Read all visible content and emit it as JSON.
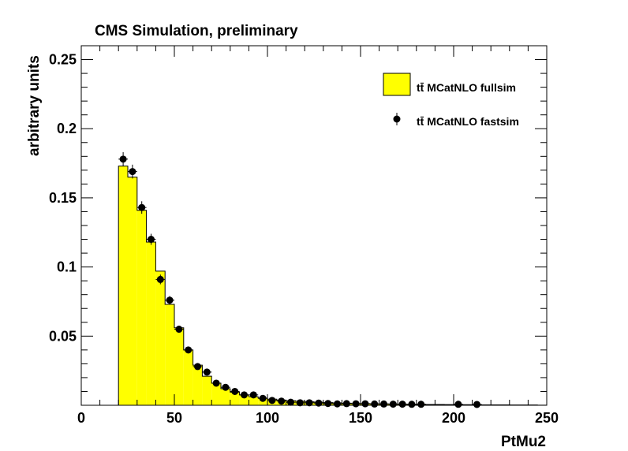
{
  "chart_data": {
    "type": "bar",
    "title": "CMS Simulation, preliminary",
    "xlabel": "PtMu2",
    "ylabel": "arbitrary units",
    "xlim": [
      0,
      250
    ],
    "ylim": [
      0,
      0.26
    ],
    "x_ticks": [
      0,
      50,
      100,
      150,
      200,
      250
    ],
    "y_ticks": [
      0.05,
      0.1,
      0.15,
      0.2,
      0.25
    ],
    "x_tick_labels": [
      "0",
      "50",
      "100",
      "150",
      "200",
      "250"
    ],
    "y_tick_labels": [
      "0.05",
      "0.1",
      "0.15",
      "0.2",
      "0.25"
    ],
    "grid": false,
    "legend_position": "top-right",
    "bin_edges": [
      20,
      25,
      30,
      35,
      40,
      45,
      50,
      55,
      60,
      65,
      70,
      75,
      80,
      85,
      90,
      95,
      100,
      105,
      110,
      115,
      120,
      125,
      130,
      135,
      140,
      145,
      150,
      155,
      160,
      165,
      170,
      175,
      180,
      185,
      190,
      195,
      200,
      205,
      210,
      215,
      220,
      225,
      230,
      235,
      240,
      245,
      250
    ],
    "series": [
      {
        "name": "tt̄ MCatNLO fullsim",
        "kind": "histogram",
        "color": "#ffff00",
        "edge_color": "#000000",
        "values": [
          0.173,
          0.165,
          0.141,
          0.118,
          0.097,
          0.073,
          0.056,
          0.04,
          0.029,
          0.021,
          0.016,
          0.012,
          0.0095,
          0.0075,
          0.0062,
          0.0052,
          0.0044,
          0.0038,
          0.0033,
          0.0029,
          0.0025,
          0.0022,
          0.0019,
          0.0017,
          0.0015,
          0.0013,
          0.0012,
          0.0011,
          0.001,
          0.0009,
          0.0008,
          0.0007,
          0.0007,
          0.0006,
          0.0006,
          0.0005,
          0.0005,
          0.0004,
          0.0004,
          0.0003,
          0.0003,
          0.0003,
          0.0002,
          0.0002,
          0.0002,
          0.0001
        ]
      },
      {
        "name": "tt̄ MCatNLO fastsim",
        "kind": "points",
        "color": "#000000",
        "x": [
          22.5,
          27.5,
          32.5,
          37.5,
          42.5,
          47.5,
          52.5,
          57.5,
          62.5,
          67.5,
          72.5,
          77.5,
          82.5,
          87.5,
          92.5,
          97.5,
          102.5,
          107.5,
          112.5,
          117.5,
          122.5,
          127.5,
          132.5,
          137.5,
          142.5,
          147.5,
          152.5,
          157.5,
          162.5,
          167.5,
          172.5,
          177.5,
          182.5,
          202.5,
          212.5
        ],
        "values": [
          0.178,
          0.169,
          0.143,
          0.12,
          0.091,
          0.076,
          0.055,
          0.04,
          0.028,
          0.024,
          0.016,
          0.013,
          0.01,
          0.0075,
          0.0075,
          0.005,
          0.0035,
          0.003,
          0.0022,
          0.0018,
          0.0018,
          0.0016,
          0.0013,
          0.001,
          0.0012,
          0.0011,
          0.0011,
          0.0009,
          0.0009,
          0.0008,
          0.0008,
          0.0007,
          0.0007,
          0.0007,
          0.0006
        ],
        "errors": [
          0.005,
          0.005,
          0.0045,
          0.004,
          0.0035,
          0.003,
          0.0025,
          0.002,
          0.0018,
          0.0016,
          0.0013,
          0.0012,
          0.001,
          0.0009,
          0.0009,
          0.0008,
          0.0007,
          0.0006,
          0.0006,
          0.0005,
          0.0005,
          0.0005,
          0.0004,
          0.0004,
          0.0004,
          0.0004,
          0.0004,
          0.0003,
          0.0003,
          0.0003,
          0.0003,
          0.0003,
          0.0003,
          0.0003,
          0.0003
        ]
      }
    ]
  }
}
